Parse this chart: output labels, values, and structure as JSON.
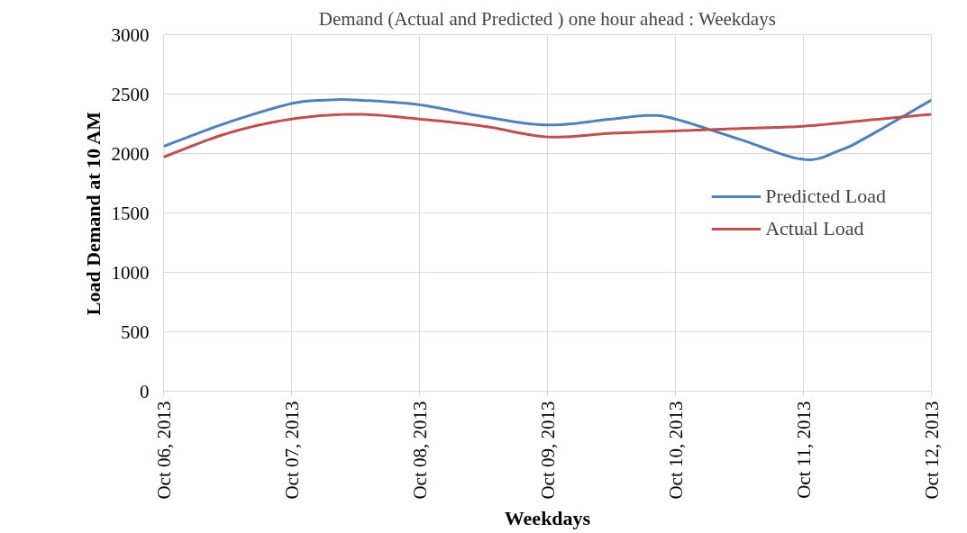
{
  "chart_data": {
    "type": "line",
    "title": "Demand (Actual and Predicted ) one hour ahead : Weekdays",
    "xlabel": "Weekdays",
    "ylabel": "Load Demand at 10 AM",
    "xlim": [
      "2013-10-06",
      "2013-10-12"
    ],
    "xticks": [
      {
        "value": "2013-10-06",
        "label": "Oct 06, 2013"
      },
      {
        "value": "2013-10-07",
        "label": "Oct 07, 2013"
      },
      {
        "value": "2013-10-08",
        "label": "Oct 08, 2013"
      },
      {
        "value": "2013-10-09",
        "label": "Oct 09, 2013"
      },
      {
        "value": "2013-10-10",
        "label": "Oct 10, 2013"
      },
      {
        "value": "2013-10-11",
        "label": "Oct 11, 2013"
      },
      {
        "value": "2013-10-12",
        "label": "Oct 12, 2013"
      }
    ],
    "ylim": [
      0,
      3000
    ],
    "yticks": [
      0,
      500,
      1000,
      1500,
      2000,
      2500,
      3000
    ],
    "grid": true,
    "legend": "right",
    "line_style": "solid",
    "series": [
      {
        "name": "Predicted Load",
        "color": "#4f81bd",
        "x": [
          "2013-10-06T00:00",
          "2013-10-06T12:00",
          "2013-10-07T00:00",
          "2013-10-07T07:00",
          "2013-10-07T12:00",
          "2013-10-08T00:00",
          "2013-10-08T12:00",
          "2013-10-09T00:00",
          "2013-10-09T12:00",
          "2013-10-09T19:00",
          "2013-10-10T00:00",
          "2013-10-10T12:00",
          "2013-10-11T00:00",
          "2013-10-11T07:00",
          "2013-10-11T12:00",
          "2013-10-12T00:00"
        ],
        "values": [
          2060,
          2260,
          2420,
          2450,
          2450,
          2410,
          2310,
          2240,
          2290,
          2320,
          2290,
          2120,
          1950,
          2030,
          2140,
          2450
        ]
      },
      {
        "name": "Actual Load",
        "color": "#c0504d",
        "x": [
          "2013-10-06T00:00",
          "2013-10-06T12:00",
          "2013-10-07T00:00",
          "2013-10-07T12:00",
          "2013-10-08T00:00",
          "2013-10-08T12:00",
          "2013-10-09T00:00",
          "2013-10-09T12:00",
          "2013-10-10T00:00",
          "2013-10-10T12:00",
          "2013-10-11T00:00",
          "2013-10-11T12:00",
          "2013-10-12T00:00"
        ],
        "values": [
          1970,
          2170,
          2290,
          2330,
          2290,
          2230,
          2140,
          2170,
          2190,
          2210,
          2230,
          2280,
          2330
        ]
      }
    ]
  }
}
